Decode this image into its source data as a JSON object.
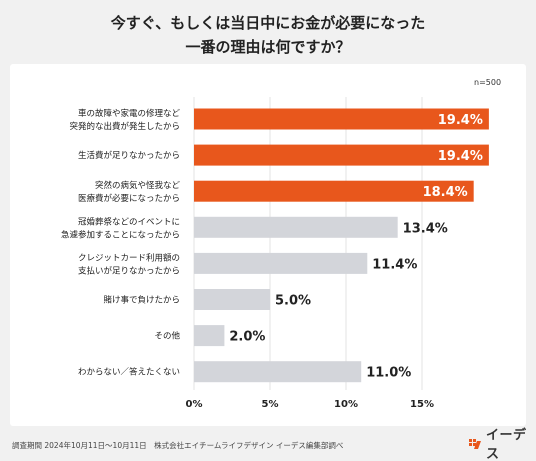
{
  "title": {
    "line1": "今すぐ、もしくは当日中にお金が必要になった",
    "line2": "一番の理由は何ですか？"
  },
  "sample_note": "n=500",
  "chart_data": {
    "type": "bar",
    "orientation": "horizontal",
    "categories": [
      [
        "車の故障や家電の修理など",
        "突発的な出費が発生したから"
      ],
      [
        "生活費が足りなかったから"
      ],
      [
        "突然の病気や怪我など",
        "医療費が必要になったから"
      ],
      [
        "冠婚葬祭などのイベントに",
        "急遽参加することになったから"
      ],
      [
        "クレジットカード利用額の",
        "支払いが足りなかったから"
      ],
      [
        "賭け事で負けたから"
      ],
      [
        "その他"
      ],
      [
        "わからない／答えたくない"
      ]
    ],
    "values": [
      19.4,
      19.4,
      18.4,
      13.4,
      11.4,
      5.0,
      2.0,
      11.0
    ],
    "value_labels": [
      "19.4%",
      "19.4%",
      "18.4%",
      "13.4%",
      "11.4%",
      "5.0%",
      "2.0%",
      "11.0%"
    ],
    "highlight": [
      true,
      true,
      true,
      false,
      false,
      false,
      false,
      false
    ],
    "xlim": [
      0,
      15
    ],
    "xticks": [
      0,
      5,
      10,
      15
    ],
    "xtick_labels": [
      "0%",
      "5%",
      "10%",
      "15%"
    ],
    "grid": true,
    "colors": {
      "highlight": "#e8571c",
      "normal": "#d3d5da",
      "grid": "#e3e3e3"
    }
  },
  "footer": "調査期間 2024年10月11日〜10月11日　株式会社エイチームライフデザイン イーデス編集部調べ",
  "logo": {
    "text": "イーデス",
    "accent": "#e8571c",
    "icon": "edeas-logo-icon"
  }
}
